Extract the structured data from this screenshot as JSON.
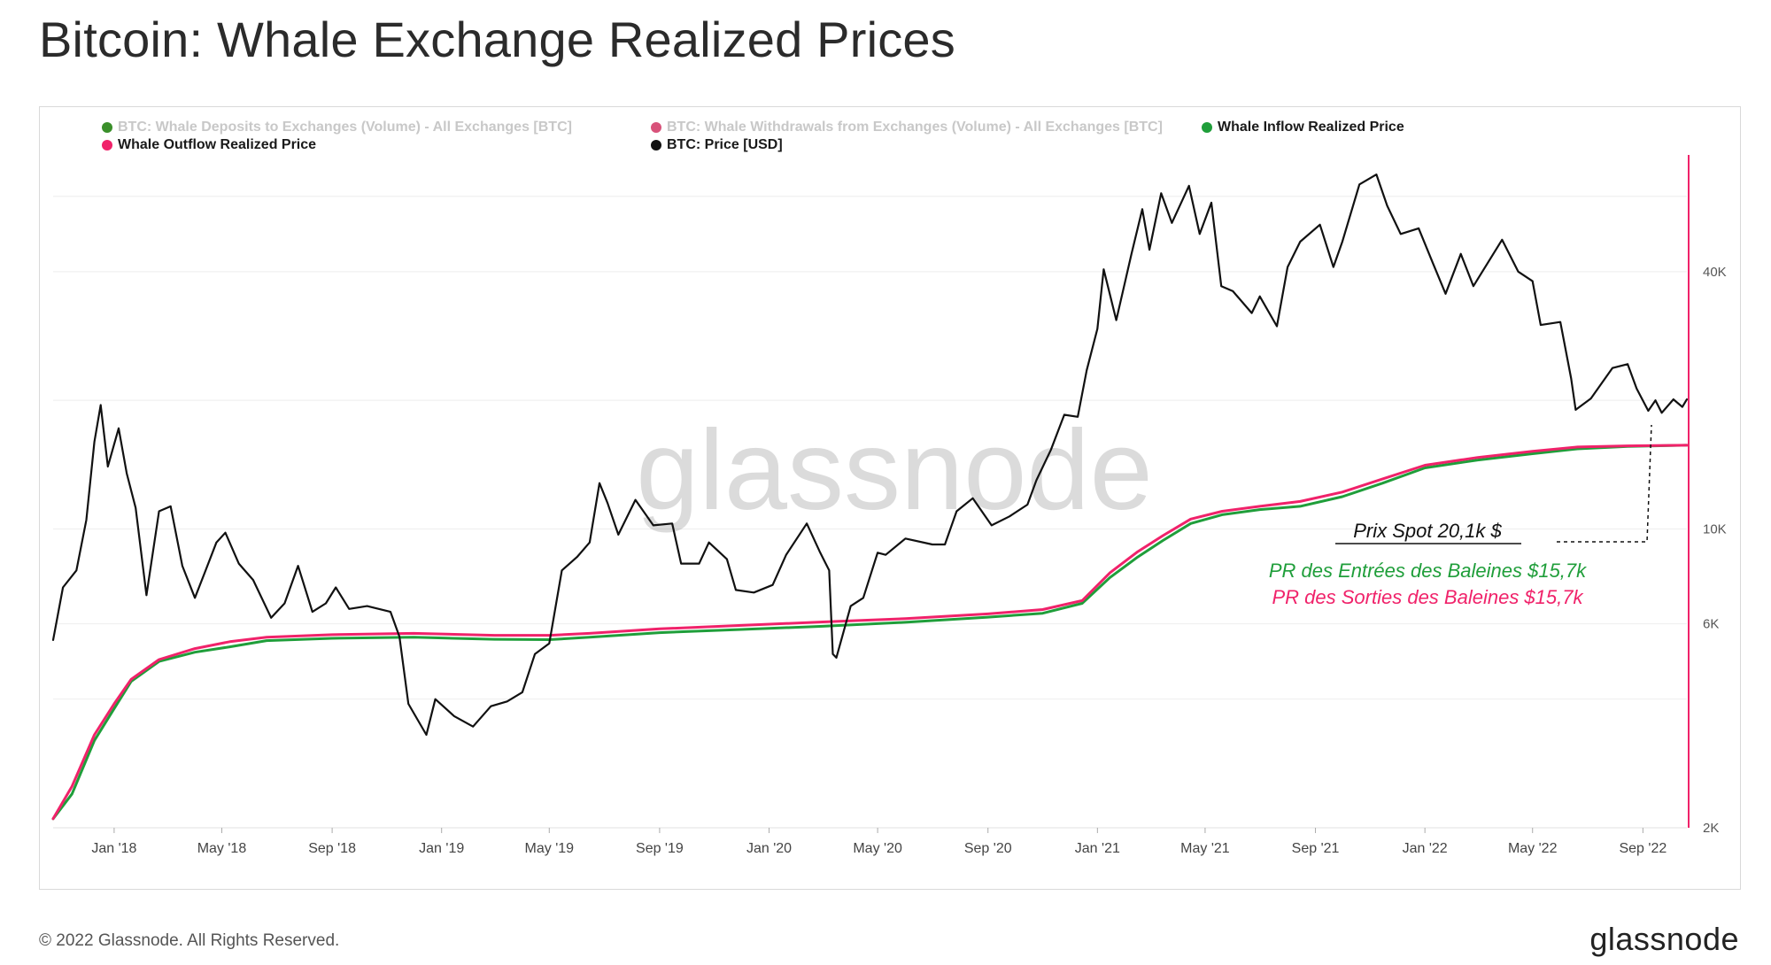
{
  "page": {
    "title": "Bitcoin: Whale Exchange Realized Prices",
    "footer": "© 2022 Glassnode. All Rights Reserved.",
    "brand": "glassnode",
    "watermark": "glassnode"
  },
  "legend": [
    {
      "label": "BTC: Whale Deposits to Exchanges (Volume) - All Exchanges [BTC]",
      "color": "#3a8f2a",
      "muted": true
    },
    {
      "label": "BTC: Whale Withdrawals from Exchanges (Volume) - All Exchanges [BTC]",
      "color": "#d8527a",
      "muted": true
    },
    {
      "label": "Whale Inflow Realized Price",
      "color": "#1f9e3a",
      "muted": false
    },
    {
      "label": "Whale Outflow Realized Price",
      "color": "#f0226a",
      "muted": false
    },
    {
      "label": "BTC: Price [USD]",
      "color": "#111111",
      "muted": false
    }
  ],
  "annotations": {
    "spot": "Prix Spot 20,1k $",
    "inflow": "PR des Entrées des Baleines $15,7k",
    "outflow": "PR des Sorties des Baleines $15,7k",
    "inflow_color": "#1f9e3a",
    "outflow_color": "#f0226a"
  },
  "chart_data": {
    "type": "line",
    "title": "Bitcoin: Whale Exchange Realized Prices",
    "y_scale": "log",
    "ylim": [
      2000,
      75000
    ],
    "xlim": [
      "2017-10-25",
      "2022-10-20"
    ],
    "grid": true,
    "legend_position": "top-left",
    "x_ticks": [
      {
        "date": "2018-01-01",
        "label": "Jan '18"
      },
      {
        "date": "2018-05-01",
        "label": "May '18"
      },
      {
        "date": "2018-09-01",
        "label": "Sep '18"
      },
      {
        "date": "2019-01-01",
        "label": "Jan '19"
      },
      {
        "date": "2019-05-01",
        "label": "May '19"
      },
      {
        "date": "2019-09-01",
        "label": "Sep '19"
      },
      {
        "date": "2020-01-01",
        "label": "Jan '20"
      },
      {
        "date": "2020-05-01",
        "label": "May '20"
      },
      {
        "date": "2020-09-01",
        "label": "Sep '20"
      },
      {
        "date": "2021-01-01",
        "label": "Jan '21"
      },
      {
        "date": "2021-05-01",
        "label": "May '21"
      },
      {
        "date": "2021-09-01",
        "label": "Sep '21"
      },
      {
        "date": "2022-01-01",
        "label": "Jan '22"
      },
      {
        "date": "2022-05-01",
        "label": "May '22"
      },
      {
        "date": "2022-09-01",
        "label": "Sep '22"
      }
    ],
    "y_ticks": [
      {
        "value": 2000,
        "label": "2K"
      },
      {
        "value": 6000,
        "label": "6K"
      },
      {
        "value": 10000,
        "label": "10K"
      },
      {
        "value": 40000,
        "label": "40K"
      }
    ],
    "series": [
      {
        "name": "BTC: Price [USD]",
        "color": "#111111",
        "points": [
          [
            "2017-10-25",
            5500
          ],
          [
            "2017-11-05",
            7300
          ],
          [
            "2017-11-20",
            8000
          ],
          [
            "2017-12-01",
            10500
          ],
          [
            "2017-12-10",
            16000
          ],
          [
            "2017-12-17",
            19500
          ],
          [
            "2017-12-25",
            14000
          ],
          [
            "2018-01-06",
            17200
          ],
          [
            "2018-01-15",
            13500
          ],
          [
            "2018-01-25",
            11200
          ],
          [
            "2018-02-06",
            7000
          ],
          [
            "2018-02-20",
            11000
          ],
          [
            "2018-03-05",
            11300
          ],
          [
            "2018-03-18",
            8200
          ],
          [
            "2018-04-01",
            6900
          ],
          [
            "2018-04-12",
            7900
          ],
          [
            "2018-04-25",
            9300
          ],
          [
            "2018-05-05",
            9800
          ],
          [
            "2018-05-20",
            8300
          ],
          [
            "2018-06-05",
            7600
          ],
          [
            "2018-06-25",
            6200
          ],
          [
            "2018-07-10",
            6700
          ],
          [
            "2018-07-25",
            8200
          ],
          [
            "2018-08-10",
            6400
          ],
          [
            "2018-08-25",
            6700
          ],
          [
            "2018-09-05",
            7300
          ],
          [
            "2018-09-20",
            6500
          ],
          [
            "2018-10-10",
            6600
          ],
          [
            "2018-11-05",
            6400
          ],
          [
            "2018-11-15",
            5600
          ],
          [
            "2018-11-25",
            3900
          ],
          [
            "2018-12-15",
            3300
          ],
          [
            "2018-12-25",
            4000
          ],
          [
            "2019-01-15",
            3650
          ],
          [
            "2019-02-05",
            3450
          ],
          [
            "2019-02-25",
            3850
          ],
          [
            "2019-03-15",
            3950
          ],
          [
            "2019-04-01",
            4150
          ],
          [
            "2019-04-15",
            5100
          ],
          [
            "2019-05-01",
            5400
          ],
          [
            "2019-05-15",
            8000
          ],
          [
            "2019-06-01",
            8600
          ],
          [
            "2019-06-15",
            9300
          ],
          [
            "2019-06-26",
            12800
          ],
          [
            "2019-07-05",
            11500
          ],
          [
            "2019-07-17",
            9700
          ],
          [
            "2019-08-05",
            11700
          ],
          [
            "2019-08-25",
            10200
          ],
          [
            "2019-09-15",
            10300
          ],
          [
            "2019-09-25",
            8300
          ],
          [
            "2019-10-15",
            8300
          ],
          [
            "2019-10-26",
            9300
          ],
          [
            "2019-11-15",
            8500
          ],
          [
            "2019-11-25",
            7200
          ],
          [
            "2019-12-15",
            7100
          ],
          [
            "2020-01-05",
            7400
          ],
          [
            "2020-01-20",
            8700
          ],
          [
            "2020-02-12",
            10300
          ],
          [
            "2020-02-27",
            8800
          ],
          [
            "2020-03-08",
            8000
          ],
          [
            "2020-03-12",
            5100
          ],
          [
            "2020-03-16",
            5000
          ],
          [
            "2020-04-01",
            6600
          ],
          [
            "2020-04-15",
            6900
          ],
          [
            "2020-05-01",
            8800
          ],
          [
            "2020-05-10",
            8700
          ],
          [
            "2020-06-01",
            9500
          ],
          [
            "2020-07-01",
            9200
          ],
          [
            "2020-07-15",
            9200
          ],
          [
            "2020-07-28",
            11000
          ],
          [
            "2020-08-15",
            11800
          ],
          [
            "2020-09-05",
            10200
          ],
          [
            "2020-09-25",
            10700
          ],
          [
            "2020-10-15",
            11400
          ],
          [
            "2020-10-25",
            13000
          ],
          [
            "2020-11-10",
            15300
          ],
          [
            "2020-11-25",
            18500
          ],
          [
            "2020-12-10",
            18300
          ],
          [
            "2020-12-20",
            23500
          ],
          [
            "2021-01-01",
            29400
          ],
          [
            "2021-01-08",
            40500
          ],
          [
            "2021-01-22",
            30800
          ],
          [
            "2021-02-08",
            44000
          ],
          [
            "2021-02-20",
            56000
          ],
          [
            "2021-02-28",
            45000
          ],
          [
            "2021-03-13",
            61000
          ],
          [
            "2021-03-25",
            52000
          ],
          [
            "2021-04-13",
            63500
          ],
          [
            "2021-04-25",
            49000
          ],
          [
            "2021-05-08",
            58000
          ],
          [
            "2021-05-19",
            37000
          ],
          [
            "2021-06-01",
            36000
          ],
          [
            "2021-06-22",
            32000
          ],
          [
            "2021-07-01",
            35000
          ],
          [
            "2021-07-20",
            29800
          ],
          [
            "2021-08-01",
            41000
          ],
          [
            "2021-08-15",
            47000
          ],
          [
            "2021-09-06",
            51500
          ],
          [
            "2021-09-21",
            41000
          ],
          [
            "2021-10-01",
            47000
          ],
          [
            "2021-10-20",
            64000
          ],
          [
            "2021-11-08",
            67500
          ],
          [
            "2021-11-20",
            57000
          ],
          [
            "2021-12-05",
            49000
          ],
          [
            "2021-12-25",
            50500
          ],
          [
            "2022-01-10",
            41800
          ],
          [
            "2022-01-24",
            35500
          ],
          [
            "2022-02-10",
            44000
          ],
          [
            "2022-02-24",
            37000
          ],
          [
            "2022-03-28",
            47500
          ],
          [
            "2022-04-15",
            40000
          ],
          [
            "2022-05-01",
            38000
          ],
          [
            "2022-05-10",
            30000
          ],
          [
            "2022-06-01",
            30500
          ],
          [
            "2022-06-13",
            22500
          ],
          [
            "2022-06-18",
            19000
          ],
          [
            "2022-07-05",
            20200
          ],
          [
            "2022-07-29",
            23800
          ],
          [
            "2022-08-15",
            24300
          ],
          [
            "2022-08-25",
            21300
          ],
          [
            "2022-09-07",
            18900
          ],
          [
            "2022-09-15",
            20000
          ],
          [
            "2022-09-22",
            18700
          ],
          [
            "2022-10-05",
            20100
          ],
          [
            "2022-10-15",
            19300
          ],
          [
            "2022-10-20",
            20100
          ]
        ]
      },
      {
        "name": "Whale Inflow Realized Price",
        "color": "#1f9e3a",
        "points": [
          [
            "2017-10-25",
            2100
          ],
          [
            "2017-11-15",
            2400
          ],
          [
            "2017-12-10",
            3200
          ],
          [
            "2018-01-01",
            3800
          ],
          [
            "2018-01-20",
            4400
          ],
          [
            "2018-02-20",
            4900
          ],
          [
            "2018-04-01",
            5150
          ],
          [
            "2018-05-10",
            5300
          ],
          [
            "2018-06-20",
            5480
          ],
          [
            "2018-09-01",
            5550
          ],
          [
            "2018-12-01",
            5580
          ],
          [
            "2019-03-01",
            5520
          ],
          [
            "2019-05-01",
            5510
          ],
          [
            "2019-06-15",
            5580
          ],
          [
            "2019-09-01",
            5720
          ],
          [
            "2019-12-01",
            5820
          ],
          [
            "2020-03-01",
            5920
          ],
          [
            "2020-06-01",
            6050
          ],
          [
            "2020-09-01",
            6220
          ],
          [
            "2020-11-01",
            6350
          ],
          [
            "2020-12-15",
            6700
          ],
          [
            "2021-01-15",
            7700
          ],
          [
            "2021-02-15",
            8600
          ],
          [
            "2021-03-15",
            9400
          ],
          [
            "2021-04-15",
            10300
          ],
          [
            "2021-05-20",
            10800
          ],
          [
            "2021-07-01",
            11100
          ],
          [
            "2021-08-15",
            11300
          ],
          [
            "2021-10-01",
            11900
          ],
          [
            "2021-11-15",
            12800
          ],
          [
            "2022-01-01",
            13900
          ],
          [
            "2022-03-01",
            14500
          ],
          [
            "2022-05-01",
            15000
          ],
          [
            "2022-06-20",
            15400
          ],
          [
            "2022-08-15",
            15600
          ],
          [
            "2022-10-20",
            15700
          ]
        ]
      },
      {
        "name": "Whale Outflow Realized Price",
        "color": "#f0226a",
        "points": [
          [
            "2017-10-25",
            2100
          ],
          [
            "2017-11-15",
            2500
          ],
          [
            "2017-12-10",
            3300
          ],
          [
            "2018-01-01",
            3900
          ],
          [
            "2018-01-20",
            4450
          ],
          [
            "2018-02-20",
            4950
          ],
          [
            "2018-04-01",
            5250
          ],
          [
            "2018-05-10",
            5450
          ],
          [
            "2018-06-20",
            5580
          ],
          [
            "2018-09-01",
            5660
          ],
          [
            "2018-12-01",
            5700
          ],
          [
            "2019-03-01",
            5640
          ],
          [
            "2019-05-01",
            5640
          ],
          [
            "2019-06-15",
            5700
          ],
          [
            "2019-09-01",
            5840
          ],
          [
            "2019-12-01",
            5950
          ],
          [
            "2020-03-01",
            6060
          ],
          [
            "2020-06-01",
            6170
          ],
          [
            "2020-09-01",
            6330
          ],
          [
            "2020-11-01",
            6480
          ],
          [
            "2020-12-15",
            6800
          ],
          [
            "2021-01-15",
            7900
          ],
          [
            "2021-02-15",
            8850
          ],
          [
            "2021-03-15",
            9650
          ],
          [
            "2021-04-15",
            10550
          ],
          [
            "2021-05-20",
            11000
          ],
          [
            "2021-07-01",
            11300
          ],
          [
            "2021-08-15",
            11600
          ],
          [
            "2021-10-01",
            12200
          ],
          [
            "2021-11-15",
            13100
          ],
          [
            "2022-01-01",
            14100
          ],
          [
            "2022-03-01",
            14700
          ],
          [
            "2022-05-01",
            15200
          ],
          [
            "2022-06-20",
            15550
          ],
          [
            "2022-08-15",
            15650
          ],
          [
            "2022-10-20",
            15700
          ]
        ]
      }
    ]
  }
}
